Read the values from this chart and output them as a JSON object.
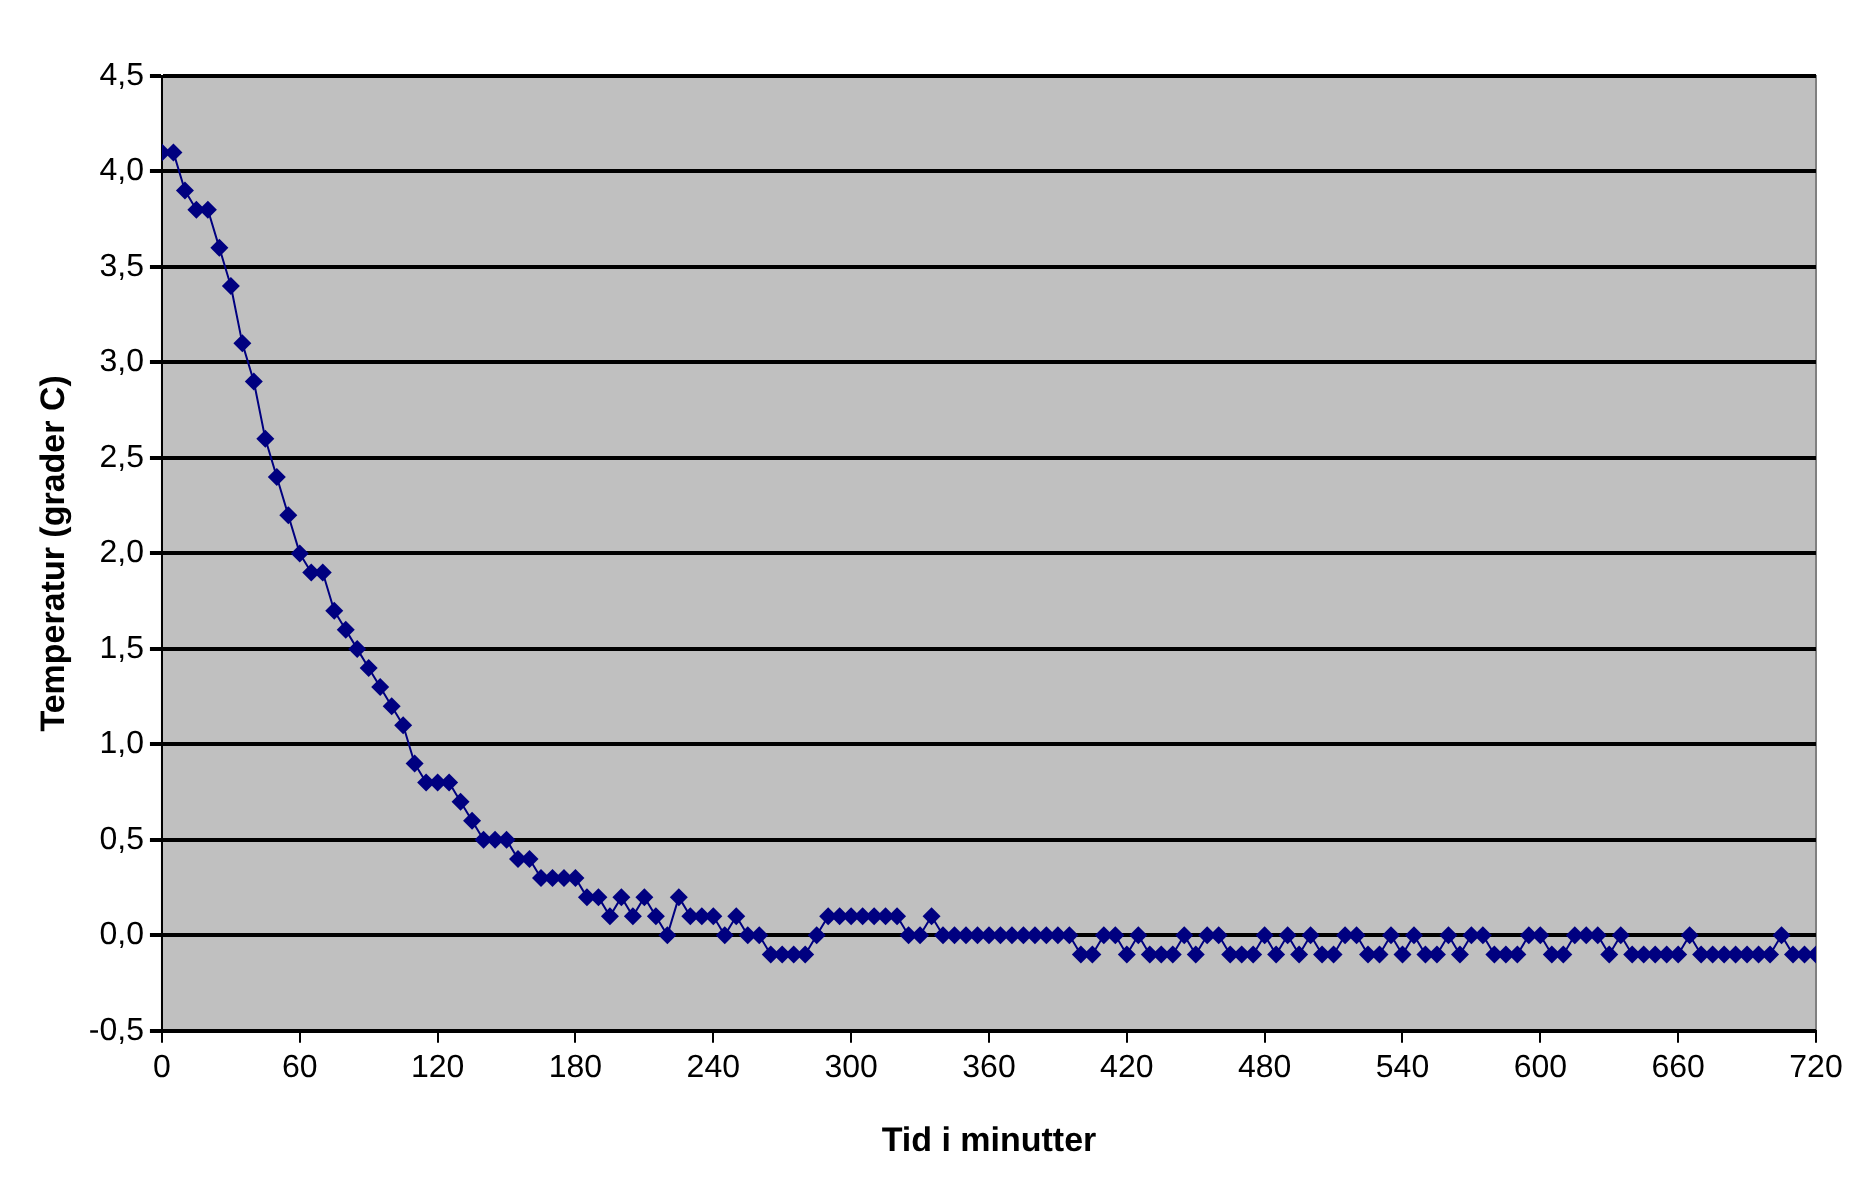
{
  "chart_data": {
    "type": "line",
    "xlabel": "Tid i minutter",
    "ylabel": "Temperatur (grader C)",
    "x": [
      0,
      5,
      10,
      15,
      20,
      25,
      30,
      35,
      40,
      45,
      50,
      55,
      60,
      65,
      70,
      75,
      80,
      85,
      90,
      95,
      100,
      105,
      110,
      115,
      120,
      125,
      130,
      135,
      140,
      145,
      150,
      155,
      160,
      165,
      170,
      175,
      180,
      185,
      190,
      195,
      200,
      205,
      210,
      215,
      220,
      225,
      230,
      235,
      240,
      245,
      250,
      255,
      260,
      265,
      270,
      275,
      280,
      285,
      290,
      295,
      300,
      305,
      310,
      315,
      320,
      325,
      330,
      335,
      340,
      345,
      350,
      355,
      360,
      365,
      370,
      375,
      380,
      385,
      390,
      395,
      400,
      405,
      410,
      415,
      420,
      425,
      430,
      435,
      440,
      445,
      450,
      455,
      460,
      465,
      470,
      475,
      480,
      485,
      490,
      495,
      500,
      505,
      510,
      515,
      520,
      525,
      530,
      535,
      540,
      545,
      550,
      555,
      560,
      565,
      570,
      575,
      580,
      585,
      590,
      595,
      600,
      605,
      610,
      615,
      620,
      625,
      630,
      635,
      640,
      645,
      650,
      655,
      660,
      665,
      670,
      675,
      680,
      685,
      690,
      695,
      700,
      705,
      710,
      715,
      720
    ],
    "series": [
      {
        "color": "#000080",
        "values": [
          4.1,
          4.1,
          3.9,
          3.8,
          3.8,
          3.6,
          3.4,
          3.1,
          2.9,
          2.6,
          2.4,
          2.2,
          2.0,
          1.9,
          1.9,
          1.7,
          1.6,
          1.5,
          1.4,
          1.3,
          1.2,
          1.1,
          0.9,
          0.8,
          0.8,
          0.8,
          0.7,
          0.6,
          0.5,
          0.5,
          0.5,
          0.4,
          0.4,
          0.3,
          0.3,
          0.3,
          0.3,
          0.2,
          0.2,
          0.1,
          0.2,
          0.1,
          0.2,
          0.1,
          0.0,
          0.2,
          0.1,
          0.1,
          0.1,
          0.0,
          0.1,
          0.0,
          0.0,
          -0.1,
          -0.1,
          -0.1,
          -0.1,
          0.0,
          0.1,
          0.1,
          0.1,
          0.1,
          0.1,
          0.1,
          0.1,
          0.0,
          0.0,
          0.1,
          0.0,
          0.0,
          0.0,
          0.0,
          0.0,
          0.0,
          0.0,
          0.0,
          0.0,
          0.0,
          0.0,
          0.0,
          -0.1,
          -0.1,
          0.0,
          0.0,
          -0.1,
          0.0,
          -0.1,
          -0.1,
          -0.1,
          0.0,
          -0.1,
          0.0,
          0.0,
          -0.1,
          -0.1,
          -0.1,
          0.0,
          -0.1,
          0.0,
          -0.1,
          0.0,
          -0.1,
          -0.1,
          0.0,
          0.0,
          -0.1,
          -0.1,
          0.0,
          -0.1,
          0.0,
          -0.1,
          -0.1,
          0.0,
          -0.1,
          0.0,
          0.0,
          -0.1,
          -0.1,
          -0.1,
          0.0,
          0.0,
          -0.1,
          -0.1,
          0.0,
          0.0,
          0.0,
          -0.1,
          0.0,
          -0.1,
          -0.1,
          -0.1,
          -0.1,
          -0.1,
          0.0,
          -0.1,
          -0.1,
          -0.1,
          -0.1,
          -0.1,
          -0.1,
          -0.1,
          0.0,
          -0.1,
          -0.1,
          -0.1
        ]
      }
    ],
    "xlim": [
      0,
      720
    ],
    "xticks": [
      0,
      60,
      120,
      180,
      240,
      300,
      360,
      420,
      480,
      540,
      600,
      660,
      720
    ],
    "ylim": [
      -0.5,
      4.5
    ],
    "yticks": [
      {
        "value": -0.5,
        "label": "-0,5"
      },
      {
        "value": 0,
        "label": "0,0"
      },
      {
        "value": 0.5,
        "label": "0,5"
      },
      {
        "value": 1,
        "label": "1,0"
      },
      {
        "value": 1.5,
        "label": "1,5"
      },
      {
        "value": 2,
        "label": "2,0"
      },
      {
        "value": 2.5,
        "label": "2,5"
      },
      {
        "value": 3,
        "label": "3,0"
      },
      {
        "value": 3.5,
        "label": "3,5"
      },
      {
        "value": 4,
        "label": "4,0"
      },
      {
        "value": 4.5,
        "label": "4,5"
      }
    ],
    "grid": "y",
    "legend": false,
    "marker": "diamond",
    "line_style": "solid"
  }
}
